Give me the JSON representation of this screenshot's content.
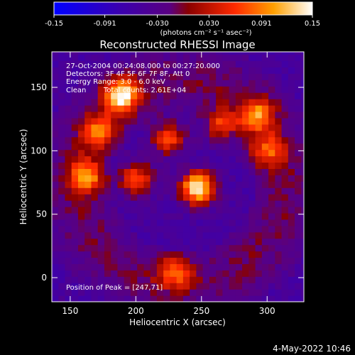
{
  "colorbar": {
    "tick_labels": [
      "-0.15",
      "-0.091",
      "-0.030",
      "0.030",
      "0.091",
      "0.15"
    ],
    "tick_values": [
      -0.15,
      -0.091,
      -0.03,
      0.03,
      0.091,
      0.15
    ],
    "range": [
      -0.15,
      0.15
    ],
    "units_label": "(photons cm⁻² s⁻¹ asec⁻²)"
  },
  "chart_data": {
    "type": "heatmap",
    "title": "Reconstructed RHESSI Image",
    "xlabel": "Heliocentric X (arcsec)",
    "ylabel": "Heliocentric Y (arcsec)",
    "xlim": [
      136,
      328
    ],
    "ylim": [
      -19,
      178
    ],
    "xticks": [
      150,
      200,
      250,
      300
    ],
    "yticks": [
      0,
      50,
      100,
      150
    ],
    "annotations": {
      "time": "27-Oct-2004 00:24:08.000 to 00:27:20.000",
      "detectors": "Detectors: 3F 4F 5F 6F 7F 8F, Att 0",
      "energy": "Energy Range: 3.0 - 6.0 keV",
      "algorithm": "Clean",
      "counts": "Total counts: 2.61E+04",
      "peak": "Position of Peak = [247,71]"
    },
    "peak": {
      "x": 247,
      "y": 71
    },
    "sources": [
      {
        "x": 247,
        "y": 71,
        "value": 0.15
      },
      {
        "x": 189,
        "y": 144,
        "value": 0.12
      },
      {
        "x": 172,
        "y": 115,
        "value": 0.06
      },
      {
        "x": 162,
        "y": 80,
        "value": 0.08
      },
      {
        "x": 200,
        "y": 78,
        "value": 0.07
      },
      {
        "x": 225,
        "y": 110,
        "value": 0.06
      },
      {
        "x": 292,
        "y": 128,
        "value": 0.07
      },
      {
        "x": 300,
        "y": 100,
        "value": 0.05
      },
      {
        "x": 265,
        "y": 120,
        "value": 0.05
      },
      {
        "x": 230,
        "y": 5,
        "value": 0.05
      }
    ]
  },
  "footer": {
    "timestamp": "4-May-2022 10:46"
  }
}
